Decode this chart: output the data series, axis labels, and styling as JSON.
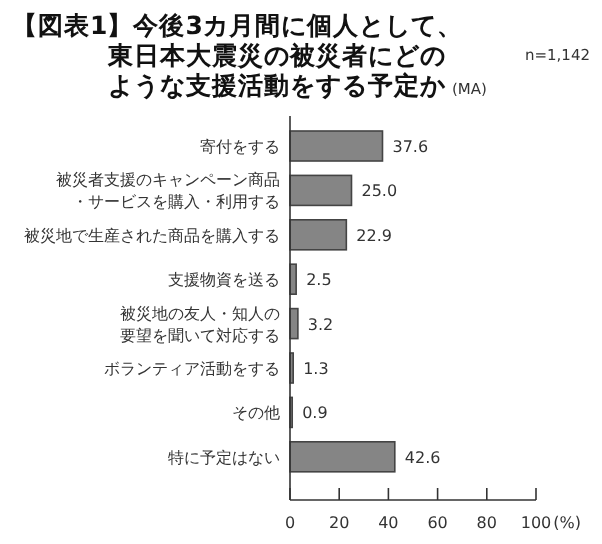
{
  "chart_data": {
    "type": "bar",
    "orientation": "horizontal",
    "title": "【図表1】今後3カ月間に個人として、東日本大震災の被災者にどのような支援活動をする予定か",
    "subtitle": "(MA)",
    "annotations": [
      "n=1,142"
    ],
    "categories": [
      "寄付をする",
      "被災者支援のキャンペーン商品・サービスを購入・利用する",
      "被災地で生産された商品を購入する",
      "支援物資を送る",
      "被災地の友人・知人の要望を聞いて対応する",
      "ボランティア活動をする",
      "その他",
      "特に予定はない"
    ],
    "values": [
      37.6,
      25.0,
      22.9,
      2.5,
      3.2,
      1.3,
      0.9,
      42.6
    ],
    "color": "#858585",
    "xlim": [
      0,
      100
    ],
    "xticks": [
      0,
      20,
      40,
      60,
      80,
      100
    ],
    "xlabel": "(%)",
    "value_labels": [
      "37.6",
      "25.0",
      "22.9",
      "2.5",
      "3.2",
      "1.3",
      "0.9",
      "42.6"
    ],
    "grid": false
  }
}
